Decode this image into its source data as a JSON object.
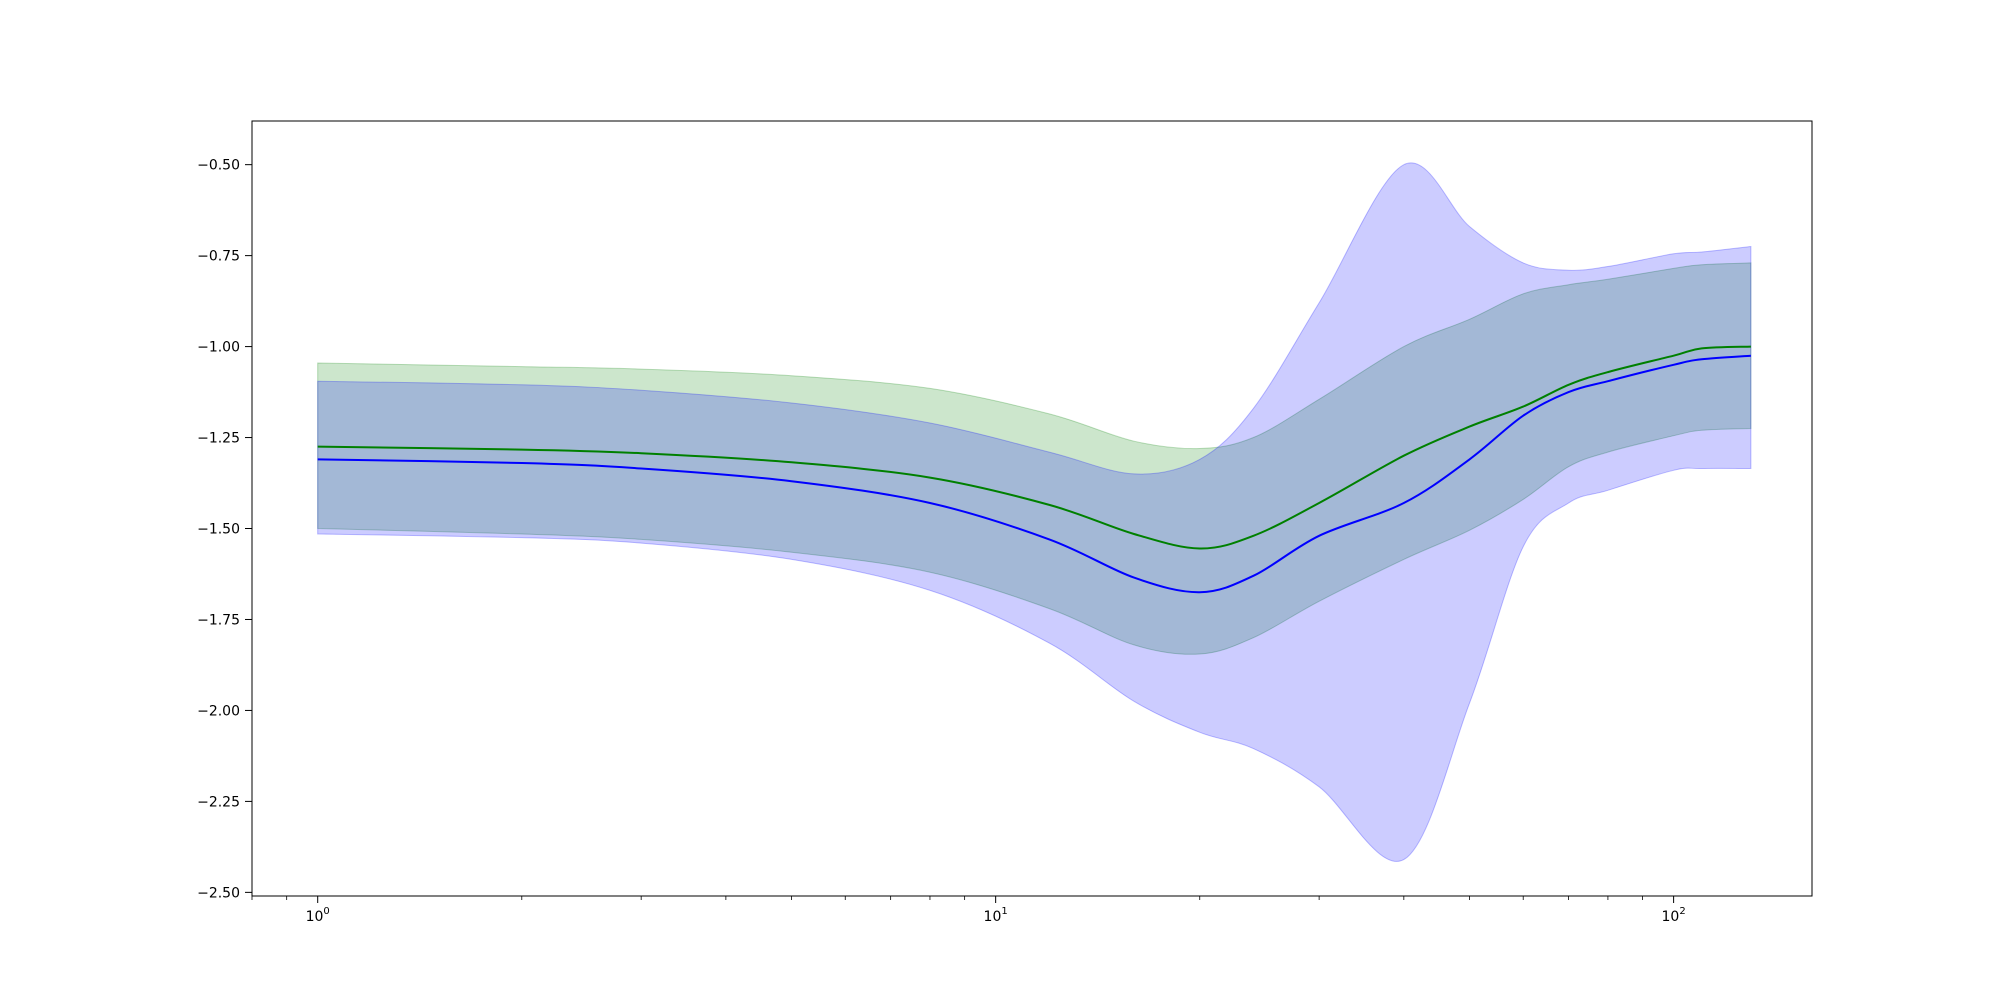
{
  "chart_data": {
    "type": "line",
    "title": "",
    "xlabel": "",
    "ylabel": "",
    "xscale": "log",
    "xlim": [
      0.8,
      160
    ],
    "ylim": [
      -2.51,
      -0.38
    ],
    "grid": false,
    "legend": "none",
    "x_ticks": [
      {
        "value": 1,
        "base": "10",
        "exp": "0"
      },
      {
        "value": 10,
        "base": "10",
        "exp": "1"
      },
      {
        "value": 100,
        "base": "10",
        "exp": "2"
      }
    ],
    "y_ticks": [
      {
        "value": -0.5,
        "label": "−0.50"
      },
      {
        "value": -0.75,
        "label": "−0.75"
      },
      {
        "value": -1.0,
        "label": "−1.00"
      },
      {
        "value": -1.25,
        "label": "−1.25"
      },
      {
        "value": -1.5,
        "label": "−1.50"
      },
      {
        "value": -1.75,
        "label": "−1.75"
      },
      {
        "value": -2.0,
        "label": "−2.00"
      },
      {
        "value": -2.25,
        "label": "−2.25"
      },
      {
        "value": -2.5,
        "label": "−2.50"
      }
    ],
    "series": [
      {
        "color": "#008000",
        "band_color": "#008000",
        "band_opacity": 0.2,
        "x": [
          1,
          2,
          3,
          5,
          8,
          12,
          16,
          20,
          24,
          30,
          40,
          50,
          60,
          70,
          80,
          100,
          110,
          130
        ],
        "values": [
          -1.275,
          -1.283,
          -1.293,
          -1.318,
          -1.36,
          -1.435,
          -1.515,
          -1.555,
          -1.52,
          -1.43,
          -1.3,
          -1.22,
          -1.165,
          -1.105,
          -1.07,
          -1.025,
          -1.005,
          -1.0
        ],
        "lower": [
          -1.5,
          -1.515,
          -1.53,
          -1.565,
          -1.62,
          -1.72,
          -1.82,
          -1.845,
          -1.8,
          -1.7,
          -1.585,
          -1.505,
          -1.42,
          -1.33,
          -1.29,
          -1.245,
          -1.23,
          -1.225
        ],
        "upper": [
          -1.045,
          -1.055,
          -1.062,
          -1.08,
          -1.115,
          -1.185,
          -1.26,
          -1.28,
          -1.25,
          -1.145,
          -1.0,
          -0.925,
          -0.855,
          -0.83,
          -0.815,
          -0.785,
          -0.775,
          -0.77
        ]
      },
      {
        "color": "#0000ff",
        "band_color": "#0000ff",
        "band_opacity": 0.2,
        "x": [
          1,
          2,
          3,
          5,
          8,
          12,
          16,
          20,
          24,
          30,
          40,
          50,
          60,
          70,
          80,
          100,
          110,
          130
        ],
        "values": [
          -1.31,
          -1.32,
          -1.335,
          -1.37,
          -1.43,
          -1.53,
          -1.635,
          -1.675,
          -1.63,
          -1.52,
          -1.43,
          -1.31,
          -1.19,
          -1.125,
          -1.095,
          -1.05,
          -1.035,
          -1.025
        ],
        "lower": [
          -1.515,
          -1.525,
          -1.54,
          -1.585,
          -1.67,
          -1.815,
          -1.975,
          -2.06,
          -2.105,
          -2.21,
          -2.41,
          -1.98,
          -1.55,
          -1.43,
          -1.395,
          -1.34,
          -1.335,
          -1.335
        ],
        "upper": [
          -1.095,
          -1.105,
          -1.12,
          -1.155,
          -1.21,
          -1.29,
          -1.35,
          -1.31,
          -1.17,
          -0.88,
          -0.5,
          -0.67,
          -0.77,
          -0.79,
          -0.78,
          -0.745,
          -0.74,
          -0.725
        ]
      }
    ]
  }
}
